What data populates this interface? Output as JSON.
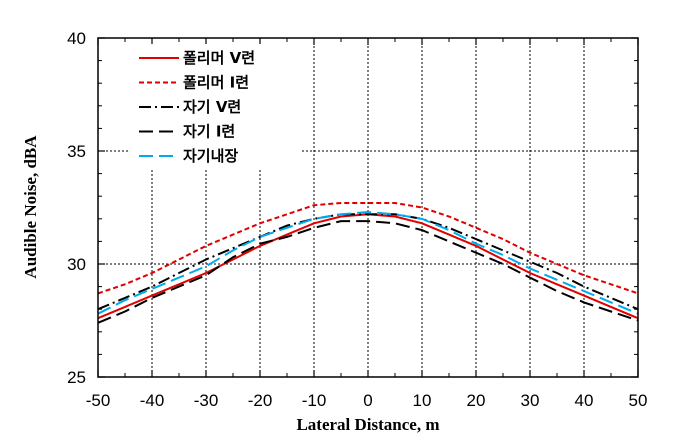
{
  "chart_data": {
    "type": "line",
    "xlabel": "Lateral Distance, m",
    "ylabel": "Audible Noise, dBA",
    "xlim": [
      -50,
      50
    ],
    "ylim": [
      25,
      40
    ],
    "xticks": [
      -50,
      -40,
      -30,
      -20,
      -10,
      0,
      10,
      20,
      30,
      40,
      50
    ],
    "yticks": [
      25,
      30,
      35,
      40
    ],
    "grid": true,
    "legend_position": "top-left",
    "x": [
      -50,
      -45,
      -40,
      -35,
      -30,
      -25,
      -20,
      -15,
      -10,
      -5,
      0,
      5,
      10,
      15,
      20,
      25,
      30,
      35,
      40,
      45,
      50
    ],
    "series": [
      {
        "name": "폴리머 V련",
        "color": "#e00000",
        "dash": "solid",
        "values": [
          27.6,
          28.1,
          28.6,
          29.1,
          29.6,
          30.2,
          30.8,
          31.3,
          31.8,
          32.1,
          32.2,
          32.1,
          31.8,
          31.3,
          30.8,
          30.2,
          29.6,
          29.1,
          28.6,
          28.1,
          27.6
        ]
      },
      {
        "name": "폴리머 I련",
        "color": "#e00000",
        "dash": "dash",
        "values": [
          28.7,
          29.1,
          29.6,
          30.2,
          30.8,
          31.3,
          31.8,
          32.2,
          32.6,
          32.7,
          32.7,
          32.7,
          32.5,
          32.1,
          31.6,
          31.1,
          30.5,
          30.0,
          29.5,
          29.1,
          28.7
        ]
      },
      {
        "name": "자기 V련",
        "color": "#000000",
        "dash": "dashdot",
        "values": [
          28.0,
          28.5,
          29.0,
          29.6,
          30.2,
          30.7,
          31.2,
          31.7,
          32.0,
          32.2,
          32.2,
          32.2,
          32.0,
          31.6,
          31.1,
          30.6,
          30.1,
          29.6,
          29.0,
          28.5,
          28.0
        ]
      },
      {
        "name": "자기 I련",
        "color": "#000000",
        "dash": "longdash",
        "values": [
          27.4,
          27.9,
          28.5,
          29.0,
          29.5,
          30.3,
          30.9,
          31.2,
          31.6,
          31.9,
          31.9,
          31.8,
          31.5,
          31.0,
          30.5,
          30.0,
          29.4,
          28.8,
          28.3,
          27.9,
          27.5
        ]
      },
      {
        "name": "자기내장",
        "color": "#00aaee",
        "dash": "longdash",
        "values": [
          27.8,
          28.4,
          28.9,
          29.4,
          29.9,
          30.6,
          31.2,
          31.6,
          32.0,
          32.2,
          32.3,
          32.2,
          32.0,
          31.5,
          30.9,
          30.4,
          29.8,
          29.3,
          28.8,
          28.3,
          27.8
        ]
      }
    ]
  }
}
